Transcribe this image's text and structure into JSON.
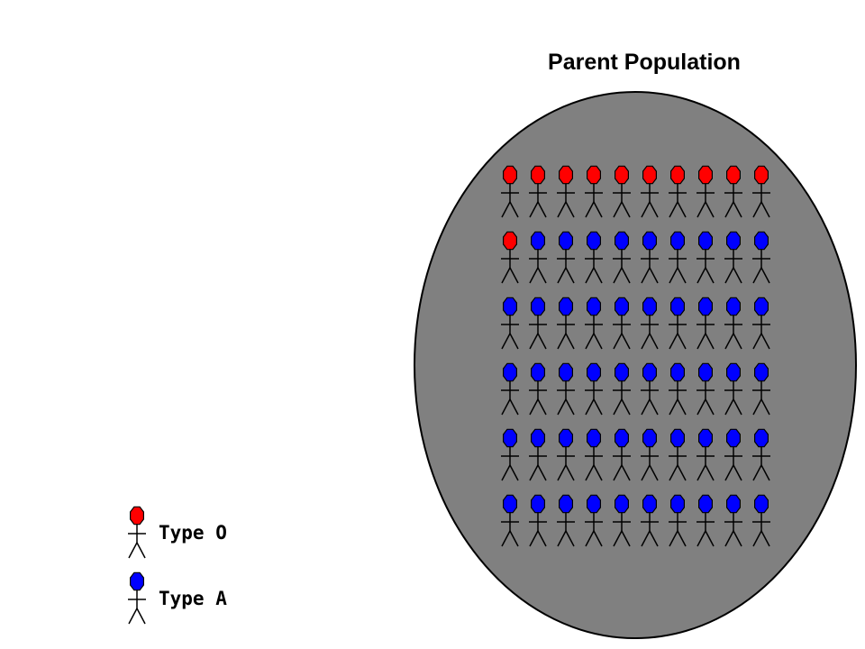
{
  "title": "Parent Population",
  "colors": {
    "background": "#ffffff",
    "population_fill": "#808080",
    "population_stroke": "#000000",
    "type_o": "#ff0000",
    "type_a": "#0000ff",
    "figure_line": "#000000"
  },
  "population": {
    "rows": [
      [
        "O",
        "O",
        "O",
        "O",
        "O",
        "O",
        "O",
        "O",
        "O",
        "O"
      ],
      [
        "O",
        "A",
        "A",
        "A",
        "A",
        "A",
        "A",
        "A",
        "A",
        "A"
      ],
      [
        "A",
        "A",
        "A",
        "A",
        "A",
        "A",
        "A",
        "A",
        "A",
        "A"
      ],
      [
        "A",
        "A",
        "A",
        "A",
        "A",
        "A",
        "A",
        "A",
        "A",
        "A"
      ],
      [
        "A",
        "A",
        "A",
        "A",
        "A",
        "A",
        "A",
        "A",
        "A",
        "A"
      ],
      [
        "A",
        "A",
        "A",
        "A",
        "A",
        "A",
        "A",
        "A",
        "A",
        "A"
      ]
    ]
  },
  "legend": [
    {
      "type": "O",
      "label": "Type O"
    },
    {
      "type": "A",
      "label": "Type A"
    }
  ]
}
